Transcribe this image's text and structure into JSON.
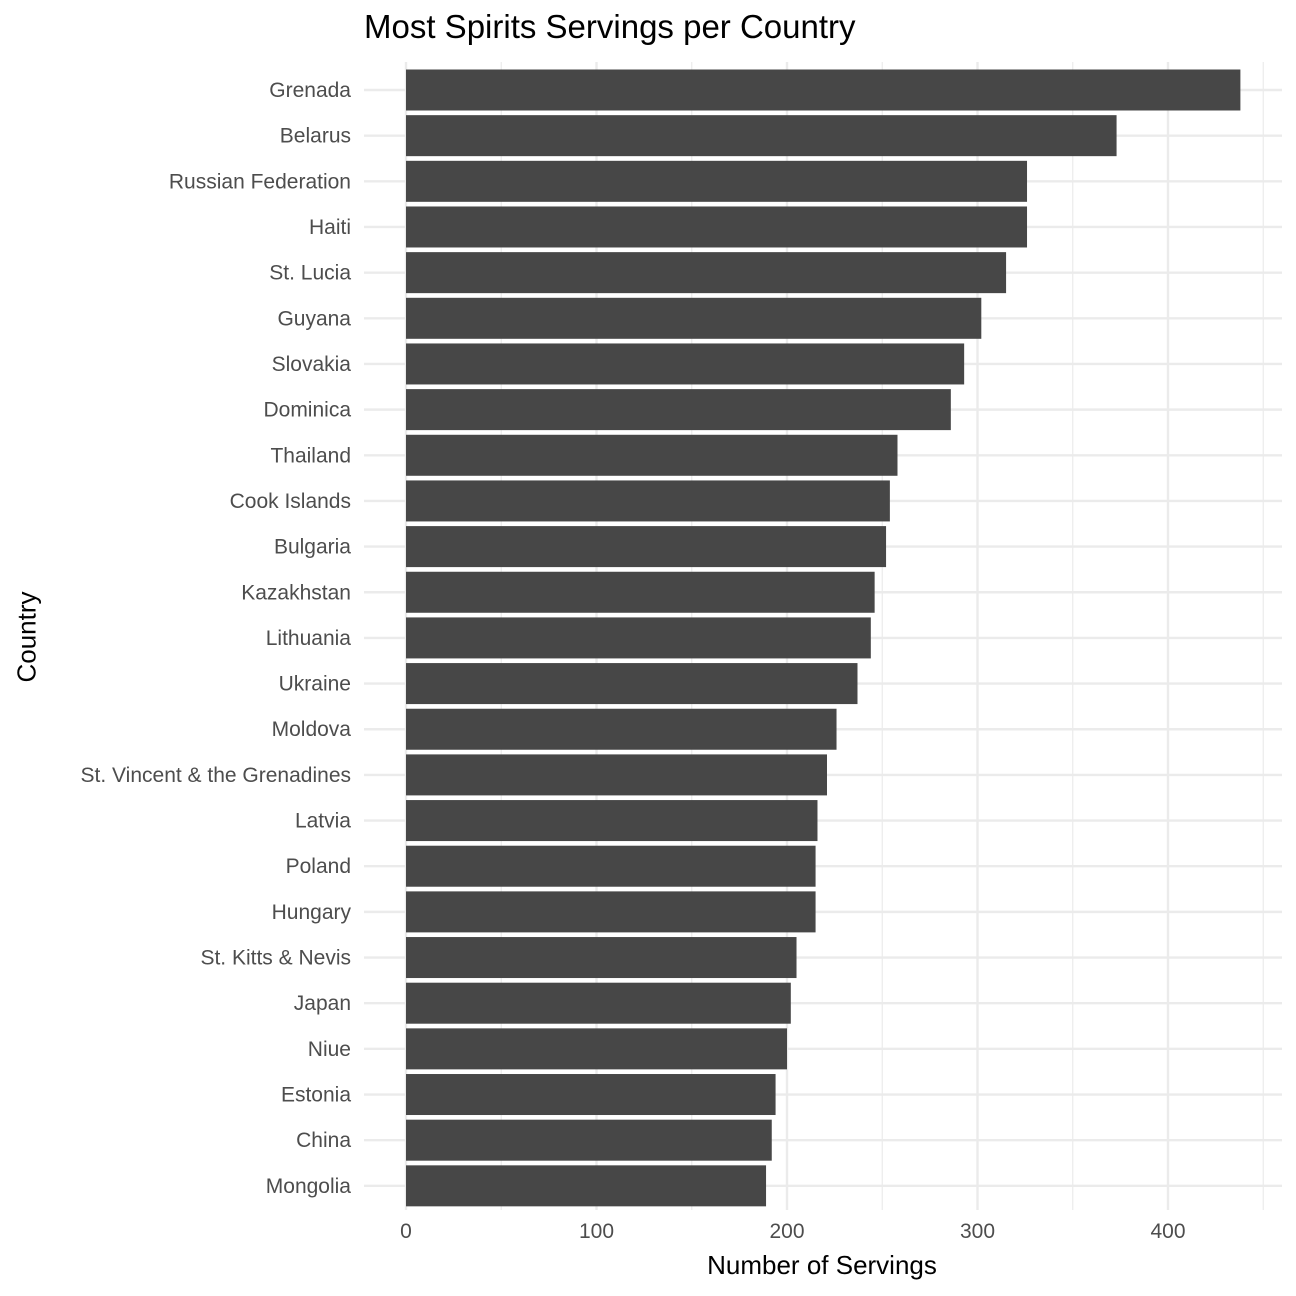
{
  "chart_data": {
    "type": "bar",
    "orientation": "horizontal",
    "title": "Most Spirits Servings per Country",
    "xlabel": "Number of Servings",
    "ylabel": "Country",
    "categories": [
      "Grenada",
      "Belarus",
      "Russian Federation",
      "Haiti",
      "St. Lucia",
      "Guyana",
      "Slovakia",
      "Dominica",
      "Thailand",
      "Cook Islands",
      "Bulgaria",
      "Kazakhstan",
      "Lithuania",
      "Ukraine",
      "Moldova",
      "St. Vincent & the Grenadines",
      "Latvia",
      "Poland",
      "Hungary",
      "St. Kitts & Nevis",
      "Japan",
      "Niue",
      "Estonia",
      "China",
      "Mongolia"
    ],
    "values": [
      438,
      373,
      326,
      326,
      315,
      302,
      293,
      286,
      258,
      254,
      252,
      246,
      244,
      237,
      226,
      221,
      216,
      215,
      215,
      205,
      202,
      200,
      194,
      192,
      189
    ],
    "xlim": [
      0,
      460
    ],
    "xticks": [
      0,
      100,
      200,
      300,
      400
    ],
    "grid": true,
    "bar_color": "#474747",
    "grid_color": "#ebebeb"
  }
}
